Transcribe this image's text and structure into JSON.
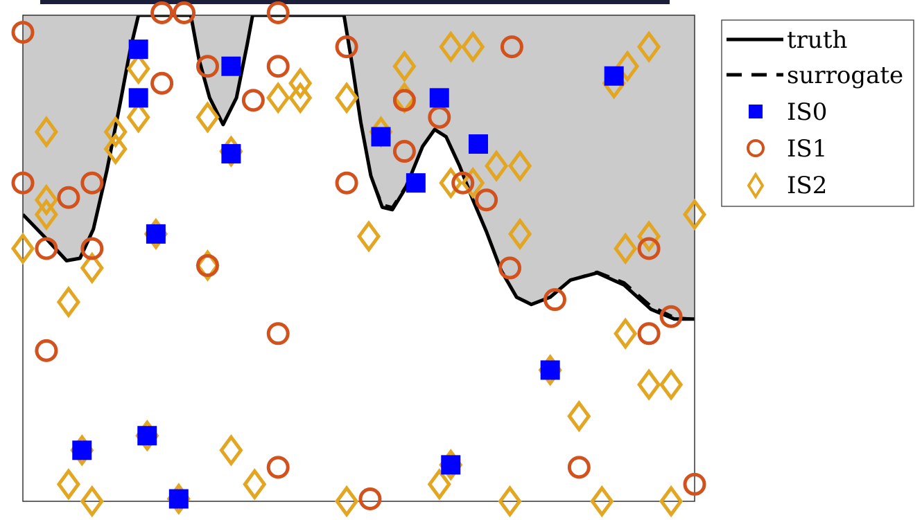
{
  "chart_data": {
    "type": "scatter",
    "title": "",
    "xlabel": "",
    "ylabel": "",
    "xlim": [
      0,
      1
    ],
    "ylim": [
      0,
      1
    ],
    "grid": false,
    "legend_placement": "outside-top-right",
    "colors": {
      "truth": "#000000",
      "surrogate": "#000000",
      "IS0": "#0000ff",
      "IS1": "#d2521e",
      "IS2": "#e3a623",
      "shade": "#cbcbcb"
    },
    "curves": [
      {
        "name": "truth",
        "style": "solid",
        "points": [
          [
            0.0,
            0.59
          ],
          [
            0.035,
            0.54
          ],
          [
            0.065,
            0.495
          ],
          [
            0.085,
            0.5
          ],
          [
            0.105,
            0.56
          ],
          [
            0.125,
            0.68
          ],
          [
            0.145,
            0.82
          ],
          [
            0.16,
            0.93
          ],
          [
            0.172,
            1.0
          ],
          [
            0.25,
            1.0
          ],
          [
            0.262,
            0.91
          ],
          [
            0.278,
            0.83
          ],
          [
            0.298,
            0.775
          ],
          [
            0.318,
            0.83
          ],
          [
            0.334,
            0.94
          ],
          [
            0.342,
            1.0
          ],
          [
            0.478,
            1.0
          ],
          [
            0.49,
            0.9
          ],
          [
            0.503,
            0.78
          ],
          [
            0.518,
            0.67
          ],
          [
            0.535,
            0.605
          ],
          [
            0.55,
            0.6
          ],
          [
            0.57,
            0.645
          ],
          [
            0.595,
            0.73
          ],
          [
            0.613,
            0.765
          ],
          [
            0.63,
            0.75
          ],
          [
            0.65,
            0.69
          ],
          [
            0.67,
            0.62
          ],
          [
            0.69,
            0.555
          ],
          [
            0.712,
            0.475
          ],
          [
            0.735,
            0.42
          ],
          [
            0.757,
            0.405
          ],
          [
            0.785,
            0.42
          ],
          [
            0.815,
            0.455
          ],
          [
            0.855,
            0.47
          ],
          [
            0.895,
            0.445
          ],
          [
            0.935,
            0.395
          ],
          [
            0.97,
            0.375
          ],
          [
            1.0,
            0.375
          ]
        ]
      },
      {
        "name": "surrogate",
        "style": "dashed",
        "points": [
          [
            0.0,
            0.59
          ],
          [
            0.035,
            0.54
          ],
          [
            0.065,
            0.495
          ],
          [
            0.085,
            0.5
          ],
          [
            0.105,
            0.56
          ],
          [
            0.125,
            0.68
          ],
          [
            0.145,
            0.82
          ],
          [
            0.16,
            0.93
          ],
          [
            0.172,
            1.0
          ],
          [
            0.25,
            1.0
          ],
          [
            0.262,
            0.91
          ],
          [
            0.278,
            0.83
          ],
          [
            0.298,
            0.775
          ],
          [
            0.318,
            0.83
          ],
          [
            0.334,
            0.94
          ],
          [
            0.342,
            1.0
          ],
          [
            0.478,
            1.0
          ],
          [
            0.49,
            0.9
          ],
          [
            0.503,
            0.78
          ],
          [
            0.518,
            0.67
          ],
          [
            0.535,
            0.61
          ],
          [
            0.55,
            0.605
          ],
          [
            0.57,
            0.648
          ],
          [
            0.595,
            0.73
          ],
          [
            0.613,
            0.765
          ],
          [
            0.63,
            0.75
          ],
          [
            0.65,
            0.69
          ],
          [
            0.67,
            0.62
          ],
          [
            0.69,
            0.555
          ],
          [
            0.712,
            0.475
          ],
          [
            0.735,
            0.42
          ],
          [
            0.757,
            0.405
          ],
          [
            0.785,
            0.42
          ],
          [
            0.815,
            0.455
          ],
          [
            0.855,
            0.472
          ],
          [
            0.895,
            0.45
          ],
          [
            0.935,
            0.402
          ],
          [
            0.97,
            0.378
          ],
          [
            1.0,
            0.375
          ]
        ]
      }
    ],
    "series": [
      {
        "name": "IS0",
        "marker": "square",
        "points": [
          [
            0.172,
            0.93
          ],
          [
            0.172,
            0.83
          ],
          [
            0.31,
            0.895
          ],
          [
            0.31,
            0.715
          ],
          [
            0.198,
            0.55
          ],
          [
            0.533,
            0.75
          ],
          [
            0.585,
            0.655
          ],
          [
            0.62,
            0.83
          ],
          [
            0.678,
            0.735
          ],
          [
            0.88,
            0.875
          ],
          [
            0.785,
            0.27
          ],
          [
            0.088,
            0.105
          ],
          [
            0.185,
            0.135
          ],
          [
            0.232,
            0.005
          ],
          [
            0.637,
            0.075
          ]
        ]
      },
      {
        "name": "IS1",
        "marker": "circle",
        "points": [
          [
            0.0,
            0.965
          ],
          [
            0.207,
            1.005
          ],
          [
            0.24,
            1.005
          ],
          [
            0.38,
            1.005
          ],
          [
            0.38,
            0.895
          ],
          [
            0.275,
            0.895
          ],
          [
            0.207,
            0.86
          ],
          [
            0.343,
            0.825
          ],
          [
            0.482,
            0.935
          ],
          [
            0.0,
            0.655
          ],
          [
            0.068,
            0.625
          ],
          [
            0.103,
            0.655
          ],
          [
            0.035,
            0.52
          ],
          [
            0.103,
            0.52
          ],
          [
            0.275,
            0.485
          ],
          [
            0.38,
            0.345
          ],
          [
            0.035,
            0.31
          ],
          [
            0.568,
            0.825
          ],
          [
            0.62,
            0.79
          ],
          [
            0.568,
            0.72
          ],
          [
            0.482,
            0.655
          ],
          [
            0.655,
            0.655
          ],
          [
            0.69,
            0.62
          ],
          [
            0.728,
            0.935
          ],
          [
            0.725,
            0.48
          ],
          [
            0.792,
            0.415
          ],
          [
            0.932,
            0.52
          ],
          [
            0.965,
            0.38
          ],
          [
            0.932,
            0.345
          ],
          [
            0.828,
            0.07
          ],
          [
            0.38,
            0.07
          ],
          [
            0.517,
            0.005
          ],
          [
            1.0,
            0.035
          ]
        ]
      },
      {
        "name": "IS2",
        "marker": "diamond",
        "points": [
          [
            0.172,
            0.89
          ],
          [
            0.172,
            0.79
          ],
          [
            0.035,
            0.76
          ],
          [
            0.138,
            0.76
          ],
          [
            0.138,
            0.725
          ],
          [
            0.275,
            0.79
          ],
          [
            0.31,
            0.72
          ],
          [
            0.035,
            0.62
          ],
          [
            0.035,
            0.59
          ],
          [
            0.0,
            0.52
          ],
          [
            0.103,
            0.48
          ],
          [
            0.068,
            0.41
          ],
          [
            0.198,
            0.55
          ],
          [
            0.275,
            0.485
          ],
          [
            0.38,
            0.83
          ],
          [
            0.413,
            0.83
          ],
          [
            0.413,
            0.86
          ],
          [
            0.482,
            0.83
          ],
          [
            0.568,
            0.895
          ],
          [
            0.568,
            0.83
          ],
          [
            0.637,
            0.935
          ],
          [
            0.67,
            0.935
          ],
          [
            0.9,
            0.895
          ],
          [
            0.932,
            0.935
          ],
          [
            0.88,
            0.86
          ],
          [
            0.533,
            0.76
          ],
          [
            0.705,
            0.69
          ],
          [
            0.74,
            0.69
          ],
          [
            0.637,
            0.655
          ],
          [
            0.67,
            0.655
          ],
          [
            0.515,
            0.545
          ],
          [
            0.74,
            0.55
          ],
          [
            0.932,
            0.545
          ],
          [
            0.897,
            0.52
          ],
          [
            1.0,
            0.59
          ],
          [
            0.897,
            0.345
          ],
          [
            0.932,
            0.24
          ],
          [
            0.965,
            0.24
          ],
          [
            0.785,
            0.27
          ],
          [
            0.828,
            0.175
          ],
          [
            0.31,
            0.105
          ],
          [
            0.185,
            0.135
          ],
          [
            0.088,
            0.105
          ],
          [
            0.068,
            0.035
          ],
          [
            0.103,
            0.0
          ],
          [
            0.232,
            0.005
          ],
          [
            0.345,
            0.035
          ],
          [
            0.482,
            0.0
          ],
          [
            0.62,
            0.035
          ],
          [
            0.637,
            0.075
          ],
          [
            0.725,
            0.0
          ],
          [
            0.862,
            0.0
          ],
          [
            0.965,
            0.0
          ]
        ]
      }
    ],
    "legend": [
      {
        "label": "truth",
        "style": "solid"
      },
      {
        "label": "surrogate",
        "style": "dashed"
      },
      {
        "label": "IS0",
        "marker": "square"
      },
      {
        "label": "IS1",
        "marker": "circle"
      },
      {
        "label": "IS2",
        "marker": "diamond"
      }
    ]
  }
}
